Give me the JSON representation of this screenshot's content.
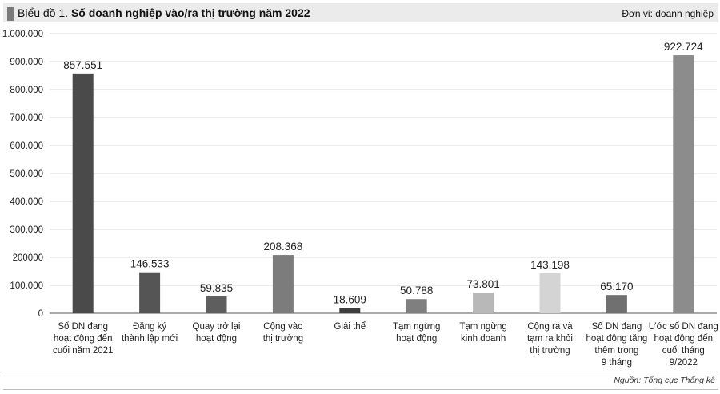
{
  "header": {
    "title_prefix": "Biểu đồ 1.",
    "title_main": "Số doanh nghiệp vào/ra thị trường năm 2022",
    "unit": "Đơn vị: doanh nghiệp"
  },
  "footer": {
    "source": "Nguồn: Tổng cục Thống kê"
  },
  "chart_data": {
    "type": "bar",
    "title": "Số doanh nghiệp vào/ra thị trường năm 2022",
    "unit": "Đơn vị: doanh nghiệp",
    "ylim": [
      0,
      1000000
    ],
    "grid": true,
    "legend": "none",
    "y_ticks": [
      {
        "value": 0,
        "label": "0"
      },
      {
        "value": 100000,
        "label": "100.000"
      },
      {
        "value": 200000,
        "label": "200000"
      },
      {
        "value": 300000,
        "label": "300.000"
      },
      {
        "value": 400000,
        "label": "400.000"
      },
      {
        "value": 500000,
        "label": "500.000"
      },
      {
        "value": 600000,
        "label": "600.000"
      },
      {
        "value": 700000,
        "label": "700.000"
      },
      {
        "value": 800000,
        "label": "800.000"
      },
      {
        "value": 900000,
        "label": "900.000"
      },
      {
        "value": 1000000,
        "label": "1.000.000"
      }
    ],
    "categories": [
      [
        "Số DN đang",
        "hoạt động đến",
        "cuối năm 2021"
      ],
      [
        "Đăng ký",
        "thành lập mới"
      ],
      [
        "Quay trở lại",
        "hoạt động"
      ],
      [
        "Cộng vào",
        "thị trường"
      ],
      [
        "Giải thể"
      ],
      [
        "Tạm ngừng",
        "hoạt động"
      ],
      [
        "Tạm ngừng",
        "kinh doanh"
      ],
      [
        "Cộng ra và",
        "tạm ra khỏi",
        "thị trường"
      ],
      [
        "Số DN đang",
        "hoạt động tăng",
        "thêm trong",
        "9 tháng"
      ],
      [
        "Ước số DN đang",
        "hoạt động đến",
        "cuối tháng",
        "9/2022"
      ]
    ],
    "values": [
      857551,
      146533,
      59835,
      208368,
      18609,
      50788,
      73801,
      143198,
      65170,
      922724
    ],
    "value_labels": [
      "857.551",
      "146.533",
      "59.835",
      "208.368",
      "18.609",
      "50.788",
      "73.801",
      "143.198",
      "65.170",
      "922.724"
    ],
    "colors": [
      "#4a4a4a",
      "#555555",
      "#5e5e5e",
      "#7c7c7c",
      "#3d3d3d",
      "#7f7f7f",
      "#b8b8b8",
      "#d4d4d4",
      "#707070",
      "#8c8c8c"
    ]
  }
}
